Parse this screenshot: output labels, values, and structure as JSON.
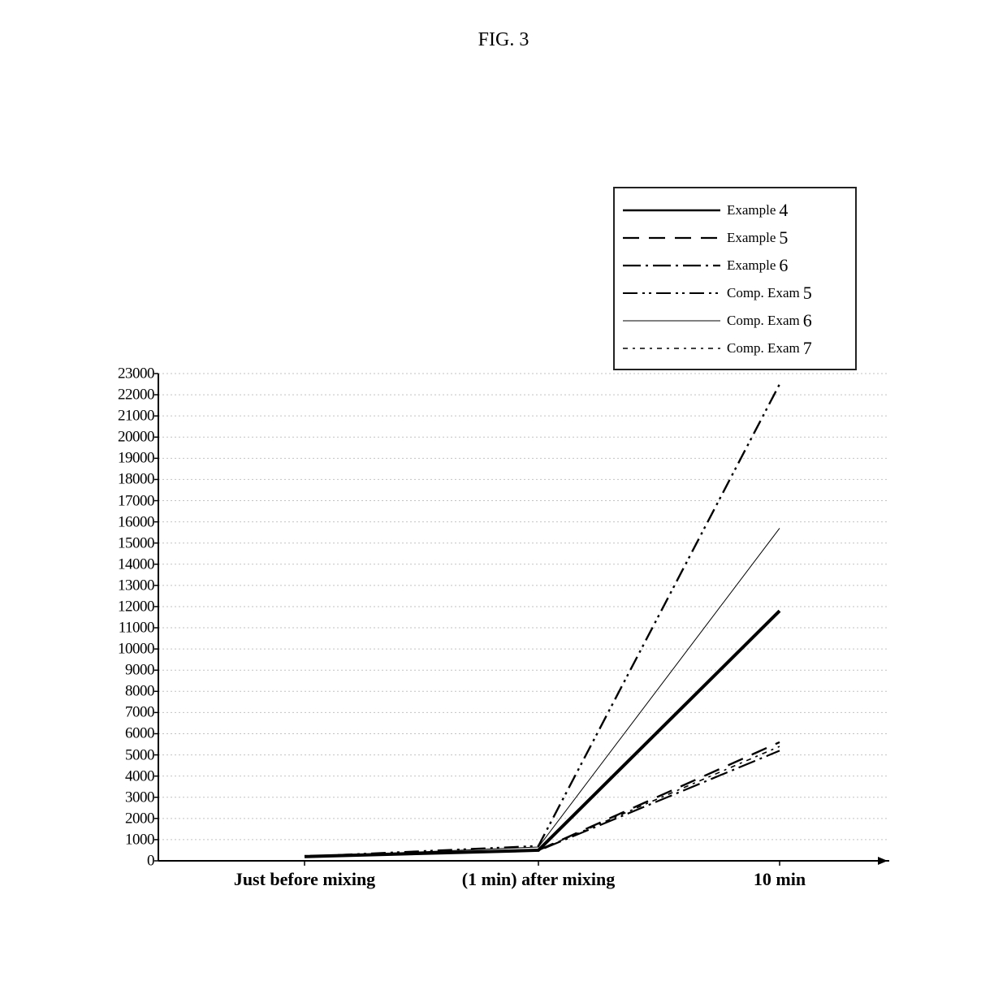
{
  "figure_title": "FIG. 3",
  "legend": {
    "items": [
      {
        "label": "Example",
        "num": "4",
        "dash": "solid",
        "width": 2.6
      },
      {
        "label": "Example",
        "num": "5",
        "dash": "long",
        "width": 2.2
      },
      {
        "label": "Example",
        "num": "6",
        "dash": "dash-dot",
        "width": 2.2
      },
      {
        "label": "Comp. Exam",
        "num": "5",
        "dash": "dash-dot-dot",
        "width": 2.0
      },
      {
        "label": "Comp. Exam",
        "num": "6",
        "dash": "thin",
        "width": 0.9
      },
      {
        "label": "Comp. Exam",
        "num": "7",
        "dash": "tiny",
        "width": 1.4
      }
    ]
  },
  "chart": {
    "type": "line",
    "background_color": "#ffffff",
    "grid_color": "#c2c2c2",
    "axis_color": "#000000",
    "text_color": "#000000",
    "y": {
      "min": 0,
      "max": 23000,
      "step": 1000
    },
    "x_categories": [
      "Just before mixing",
      "(1 min) after mixing",
      "10 min"
    ],
    "label_fontsize": 22,
    "ylabel_fontsize": 19,
    "series": [
      {
        "name": "Example 4",
        "key": "ex4",
        "dash": "solid",
        "width": 4.0,
        "y": [
          200,
          500,
          11800
        ]
      },
      {
        "name": "Example 5",
        "key": "ex5",
        "dash": "long",
        "width": 2.4,
        "y": [
          200,
          500,
          5600
        ]
      },
      {
        "name": "Example 6",
        "key": "ex6",
        "dash": "dash-dot",
        "width": 2.2,
        "y": [
          200,
          480,
          5200
        ]
      },
      {
        "name": "Comp. Exam 5",
        "key": "ce5",
        "dash": "dash-dot-dot",
        "width": 2.4,
        "y": [
          200,
          700,
          22500
        ]
      },
      {
        "name": "Comp. Exam 6",
        "key": "ce6",
        "dash": "thin",
        "width": 1.0,
        "y": [
          200,
          650,
          15700
        ]
      },
      {
        "name": "Comp. Exam 7",
        "key": "ce7",
        "dash": "tiny",
        "width": 1.6,
        "y": [
          200,
          500,
          5400
        ]
      }
    ],
    "dash_map": {
      "solid": "",
      "long": "20 12",
      "dash-dot": "22 6 3 6",
      "dash-dot-dot": "18 6 3 5 3 6",
      "thin": "",
      "tiny": "6 6 3 6"
    },
    "line_color": "#000000"
  }
}
